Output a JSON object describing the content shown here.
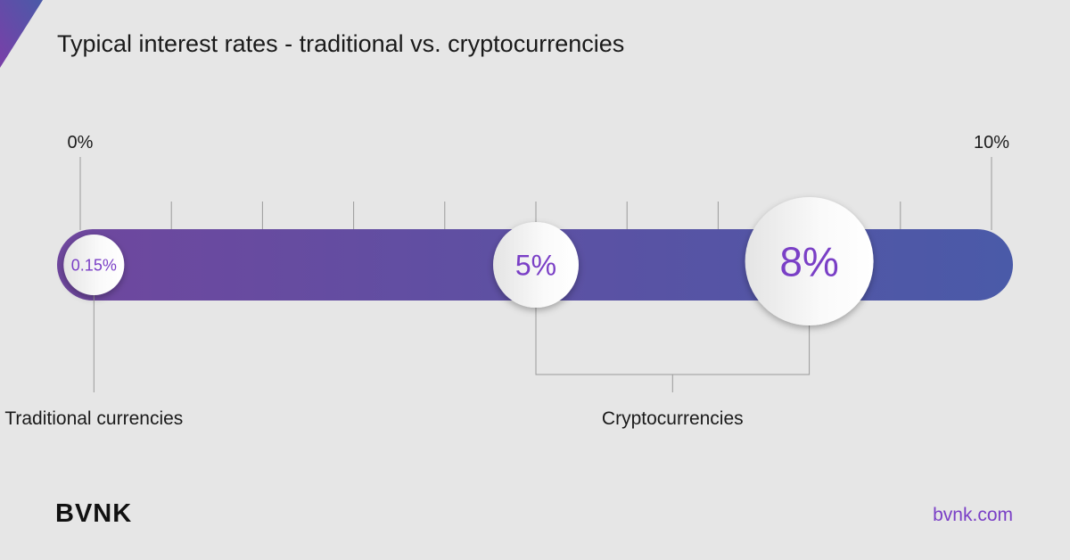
{
  "title": "Typical interest rates - traditional vs. cryptocurrencies",
  "brand": {
    "logo": "BVNK",
    "website": "bvnk.com"
  },
  "colors": {
    "background": "#e6e6e6",
    "bar_start": "#6f479e",
    "bar_end": "#4a5aa8",
    "accent_text": "#7a3fc6"
  },
  "chart_data": {
    "type": "bar",
    "title": "Typical interest rates - traditional vs. cryptocurrencies",
    "axis": {
      "min": 0,
      "max": 10,
      "tick_step": 1,
      "min_label": "0%",
      "max_label": "10%"
    },
    "markers": [
      {
        "value": 0.15,
        "label": "0.15%",
        "group": "traditional"
      },
      {
        "value": 5,
        "label": "5%",
        "group": "crypto"
      },
      {
        "value": 8,
        "label": "8%",
        "group": "crypto"
      }
    ],
    "groups": [
      {
        "id": "traditional",
        "label": "Traditional currencies"
      },
      {
        "id": "crypto",
        "label": "Cryptocurrencies"
      }
    ]
  }
}
